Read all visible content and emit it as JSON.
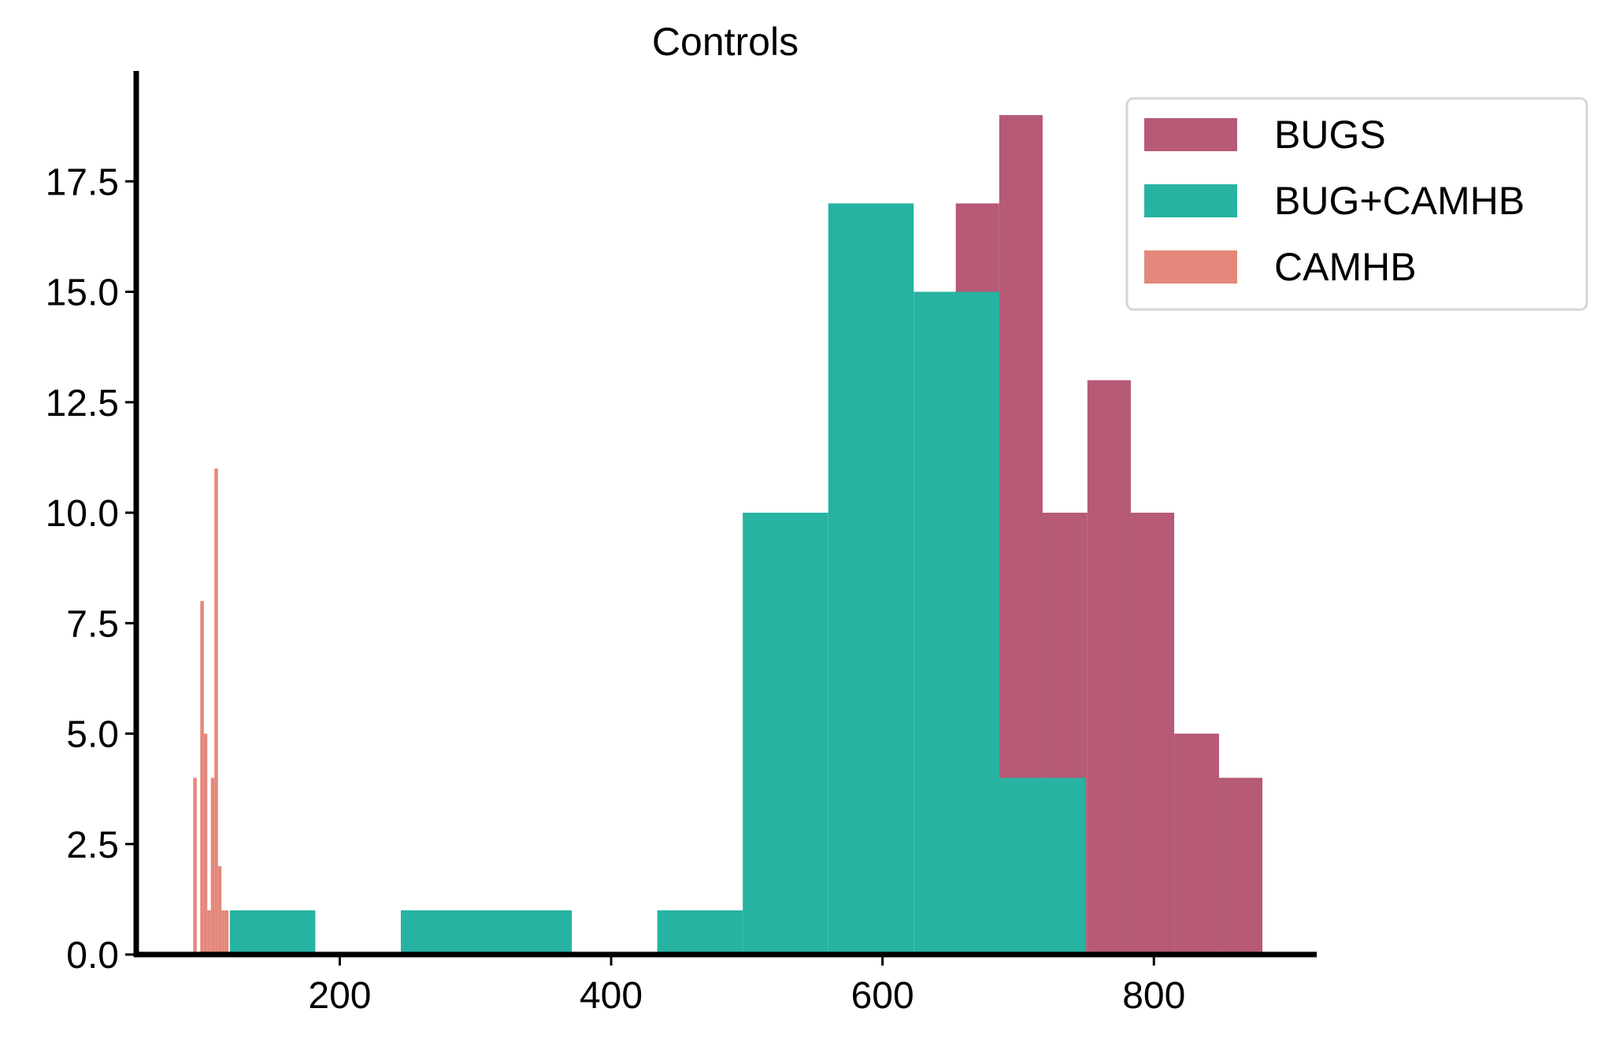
{
  "chart_data": {
    "type": "bar",
    "title": "Controls",
    "xlabel": "",
    "ylabel": "",
    "xlim": [
      50,
      920
    ],
    "ylim": [
      0,
      20
    ],
    "x_ticks": [
      200,
      400,
      600,
      800
    ],
    "x_tick_labels": [
      "200",
      "400",
      "600",
      "800"
    ],
    "y_ticks": [
      0,
      2.5,
      5,
      7.5,
      10,
      12.5,
      15,
      17.5
    ],
    "y_tick_labels": [
      "0.0",
      "2.5",
      "5.0",
      "7.5",
      "10.0",
      "12.5",
      "15.0",
      "17.5"
    ],
    "grid": false,
    "legend_position": "top-right",
    "series": [
      {
        "name": "BUGS",
        "color": "#b65a76",
        "bin_edges": [
          654,
          686,
          718,
          751,
          783,
          815,
          848,
          880
        ],
        "counts": [
          17,
          19,
          10,
          13,
          10,
          5,
          4
        ]
      },
      {
        "name": "BUG+CAMHB",
        "color": "#27b3a2",
        "bin_edges": [
          119,
          182,
          245,
          308,
          371,
          434,
          497,
          560,
          623,
          686,
          750
        ],
        "counts": [
          1,
          0,
          1,
          1,
          0,
          1,
          10,
          17,
          15,
          4
        ]
      },
      {
        "name": "CAMHB",
        "color": "#e3887a",
        "bin_edges": [
          92,
          94.6,
          97.2,
          99.8,
          102.4,
          105,
          107.6,
          110.2,
          112.8,
          115.4,
          118
        ],
        "counts": [
          4,
          0,
          8,
          5,
          1,
          4,
          11,
          2,
          1,
          1
        ]
      }
    ]
  }
}
